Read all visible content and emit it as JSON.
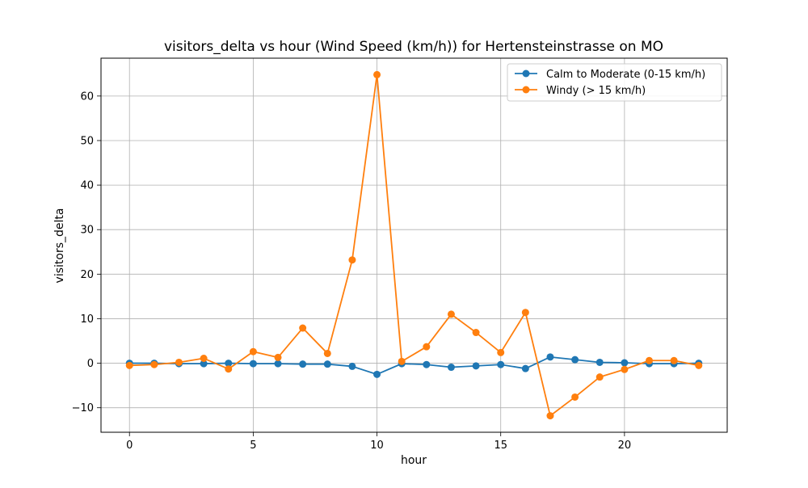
{
  "chart_data": {
    "type": "line",
    "title": "visitors_delta vs hour (Wind Speed (km/h)) for Hertensteinstrasse on MO",
    "xlabel": "hour",
    "ylabel": "visitors_delta",
    "xlim": [
      -1.15,
      24.15
    ],
    "ylim": [
      -15.5,
      68.5
    ],
    "xticks": [
      0,
      5,
      10,
      15,
      20
    ],
    "yticks": [
      -10,
      0,
      10,
      20,
      30,
      40,
      50,
      60
    ],
    "grid": true,
    "legend_position": "top-right",
    "x": [
      0,
      1,
      2,
      3,
      4,
      5,
      6,
      7,
      8,
      9,
      10,
      11,
      12,
      13,
      14,
      15,
      16,
      17,
      18,
      19,
      20,
      21,
      22,
      23
    ],
    "series": [
      {
        "name": "Calm to Moderate (0-15 km/h)",
        "color": "#1f77b4",
        "values": [
          0,
          0,
          -0.1,
          -0.1,
          0,
          -0.1,
          -0.1,
          -0.2,
          -0.2,
          -0.7,
          -2.5,
          -0.1,
          -0.3,
          -0.9,
          -0.6,
          -0.3,
          -1.2,
          1.4,
          0.8,
          0.2,
          0.1,
          -0.1,
          -0.1,
          0
        ]
      },
      {
        "name": "Windy (> 15 km/h)",
        "color": "#ff7f0e",
        "values": [
          -0.5,
          -0.3,
          0.2,
          1.1,
          -1.3,
          2.6,
          1.3,
          7.9,
          2.2,
          23.2,
          64.8,
          0.4,
          3.7,
          11.0,
          6.9,
          2.4,
          11.4,
          -11.8,
          -7.6,
          -3.1,
          -1.4,
          0.6,
          0.6,
          -0.5
        ]
      }
    ]
  }
}
